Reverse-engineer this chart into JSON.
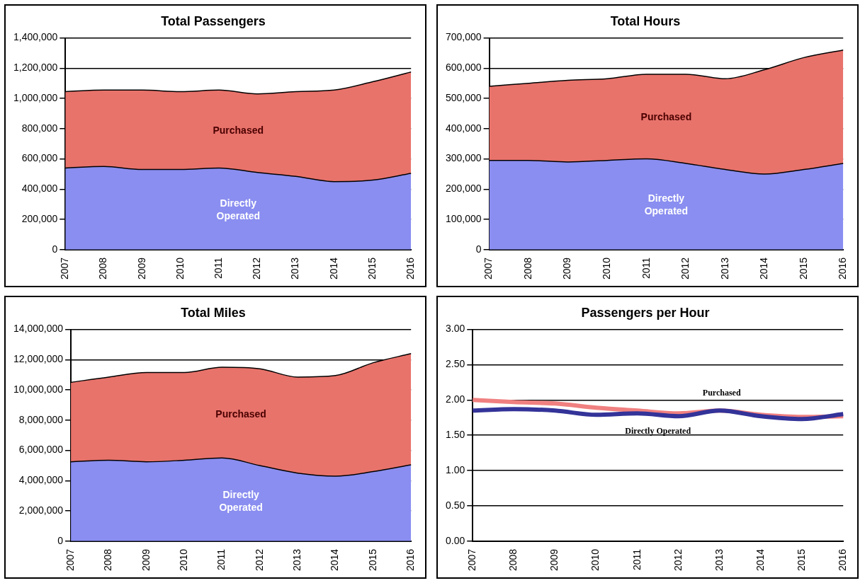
{
  "chart_data": [
    {
      "type": "area",
      "title": "Total Passengers",
      "categories": [
        "2007",
        "2008",
        "2009",
        "2010",
        "2011",
        "2012",
        "2013",
        "2014",
        "2015",
        "2016"
      ],
      "stacked": true,
      "grid": "y",
      "ylim": [
        0,
        1400000
      ],
      "yticks": [
        {
          "value": 0,
          "label": "0"
        },
        {
          "value": 200000,
          "label": "200,000"
        },
        {
          "value": 400000,
          "label": "400,000"
        },
        {
          "value": 600000,
          "label": "600,000"
        },
        {
          "value": 800000,
          "label": "800,000"
        },
        {
          "value": 1000000,
          "label": "1,000,000"
        },
        {
          "value": 1200000,
          "label": "1,200,000"
        },
        {
          "value": 1400000,
          "label": "1,400,000"
        }
      ],
      "series": [
        {
          "name": "Directly Operated",
          "color": "#8a8ef0",
          "values": [
            540000,
            550000,
            530000,
            530000,
            540000,
            510000,
            485000,
            450000,
            460000,
            505000
          ]
        },
        {
          "name": "Purchased",
          "color": "#e8736b",
          "values": [
            505000,
            505000,
            525000,
            515000,
            515000,
            520000,
            560000,
            605000,
            650000,
            670000
          ]
        }
      ]
    },
    {
      "type": "area",
      "title": "Total Hours",
      "categories": [
        "2007",
        "2008",
        "2009",
        "2010",
        "2011",
        "2012",
        "2013",
        "2014",
        "2015",
        "2016"
      ],
      "stacked": true,
      "grid": "y",
      "ylim": [
        0,
        700000
      ],
      "yticks": [
        {
          "value": 0,
          "label": "0"
        },
        {
          "value": 100000,
          "label": "100,000"
        },
        {
          "value": 200000,
          "label": "200,000"
        },
        {
          "value": 300000,
          "label": "300,000"
        },
        {
          "value": 400000,
          "label": "400,000"
        },
        {
          "value": 500000,
          "label": "500,000"
        },
        {
          "value": 600000,
          "label": "600,000"
        },
        {
          "value": 700000,
          "label": "700,000"
        }
      ],
      "series": [
        {
          "name": "Directly Operated",
          "color": "#8a8ef0",
          "values": [
            295000,
            295000,
            290000,
            295000,
            300000,
            285000,
            265000,
            250000,
            265000,
            285000
          ]
        },
        {
          "name": "Purchased",
          "color": "#e8736b",
          "values": [
            245000,
            255000,
            270000,
            270000,
            280000,
            295000,
            300000,
            345000,
            370000,
            375000
          ]
        }
      ]
    },
    {
      "type": "area",
      "title": "Total Miles",
      "categories": [
        "2007",
        "2008",
        "2009",
        "2010",
        "2011",
        "2012",
        "2013",
        "2014",
        "2015",
        "2016"
      ],
      "stacked": true,
      "grid": "y",
      "ylim": [
        0,
        14000000
      ],
      "yticks": [
        {
          "value": 0,
          "label": "0"
        },
        {
          "value": 2000000,
          "label": "2,000,000"
        },
        {
          "value": 4000000,
          "label": "4,000,000"
        },
        {
          "value": 6000000,
          "label": "6,000,000"
        },
        {
          "value": 8000000,
          "label": "8,000,000"
        },
        {
          "value": 10000000,
          "label": "10,000,000"
        },
        {
          "value": 12000000,
          "label": "12,000,000"
        },
        {
          "value": 14000000,
          "label": "14,000,000"
        }
      ],
      "series": [
        {
          "name": "Directly Operated",
          "color": "#8a8ef0",
          "values": [
            5250000,
            5350000,
            5250000,
            5350000,
            5500000,
            5000000,
            4500000,
            4300000,
            4600000,
            5050000
          ]
        },
        {
          "name": "Purchased",
          "color": "#e8736b",
          "values": [
            5250000,
            5500000,
            5900000,
            5800000,
            6000000,
            6400000,
            6350000,
            6650000,
            7200000,
            7350000
          ]
        }
      ]
    },
    {
      "type": "line",
      "title": "Passengers per Hour",
      "categories": [
        "2007",
        "2008",
        "2009",
        "2010",
        "2011",
        "2012",
        "2013",
        "2014",
        "2015",
        "2016"
      ],
      "grid": "y",
      "marker": "none",
      "ylim": [
        0,
        3
      ],
      "yticks": [
        {
          "value": 0,
          "label": "0.00"
        },
        {
          "value": 0.5,
          "label": "0.50"
        },
        {
          "value": 1,
          "label": "1.00"
        },
        {
          "value": 1.5,
          "label": "1.50"
        },
        {
          "value": 2,
          "label": "2.00"
        },
        {
          "value": 2.5,
          "label": "2.50"
        },
        {
          "value": 3,
          "label": "3.00"
        }
      ],
      "series": [
        {
          "name": "Directly Operated",
          "color": "#333399",
          "values": [
            1.85,
            1.87,
            1.85,
            1.79,
            1.81,
            1.77,
            1.85,
            1.77,
            1.73,
            1.8
          ]
        },
        {
          "name": "Purchased",
          "color": "#f08080",
          "values": [
            2.0,
            1.97,
            1.95,
            1.89,
            1.85,
            1.81,
            1.85,
            1.79,
            1.76,
            1.77
          ]
        }
      ]
    }
  ]
}
